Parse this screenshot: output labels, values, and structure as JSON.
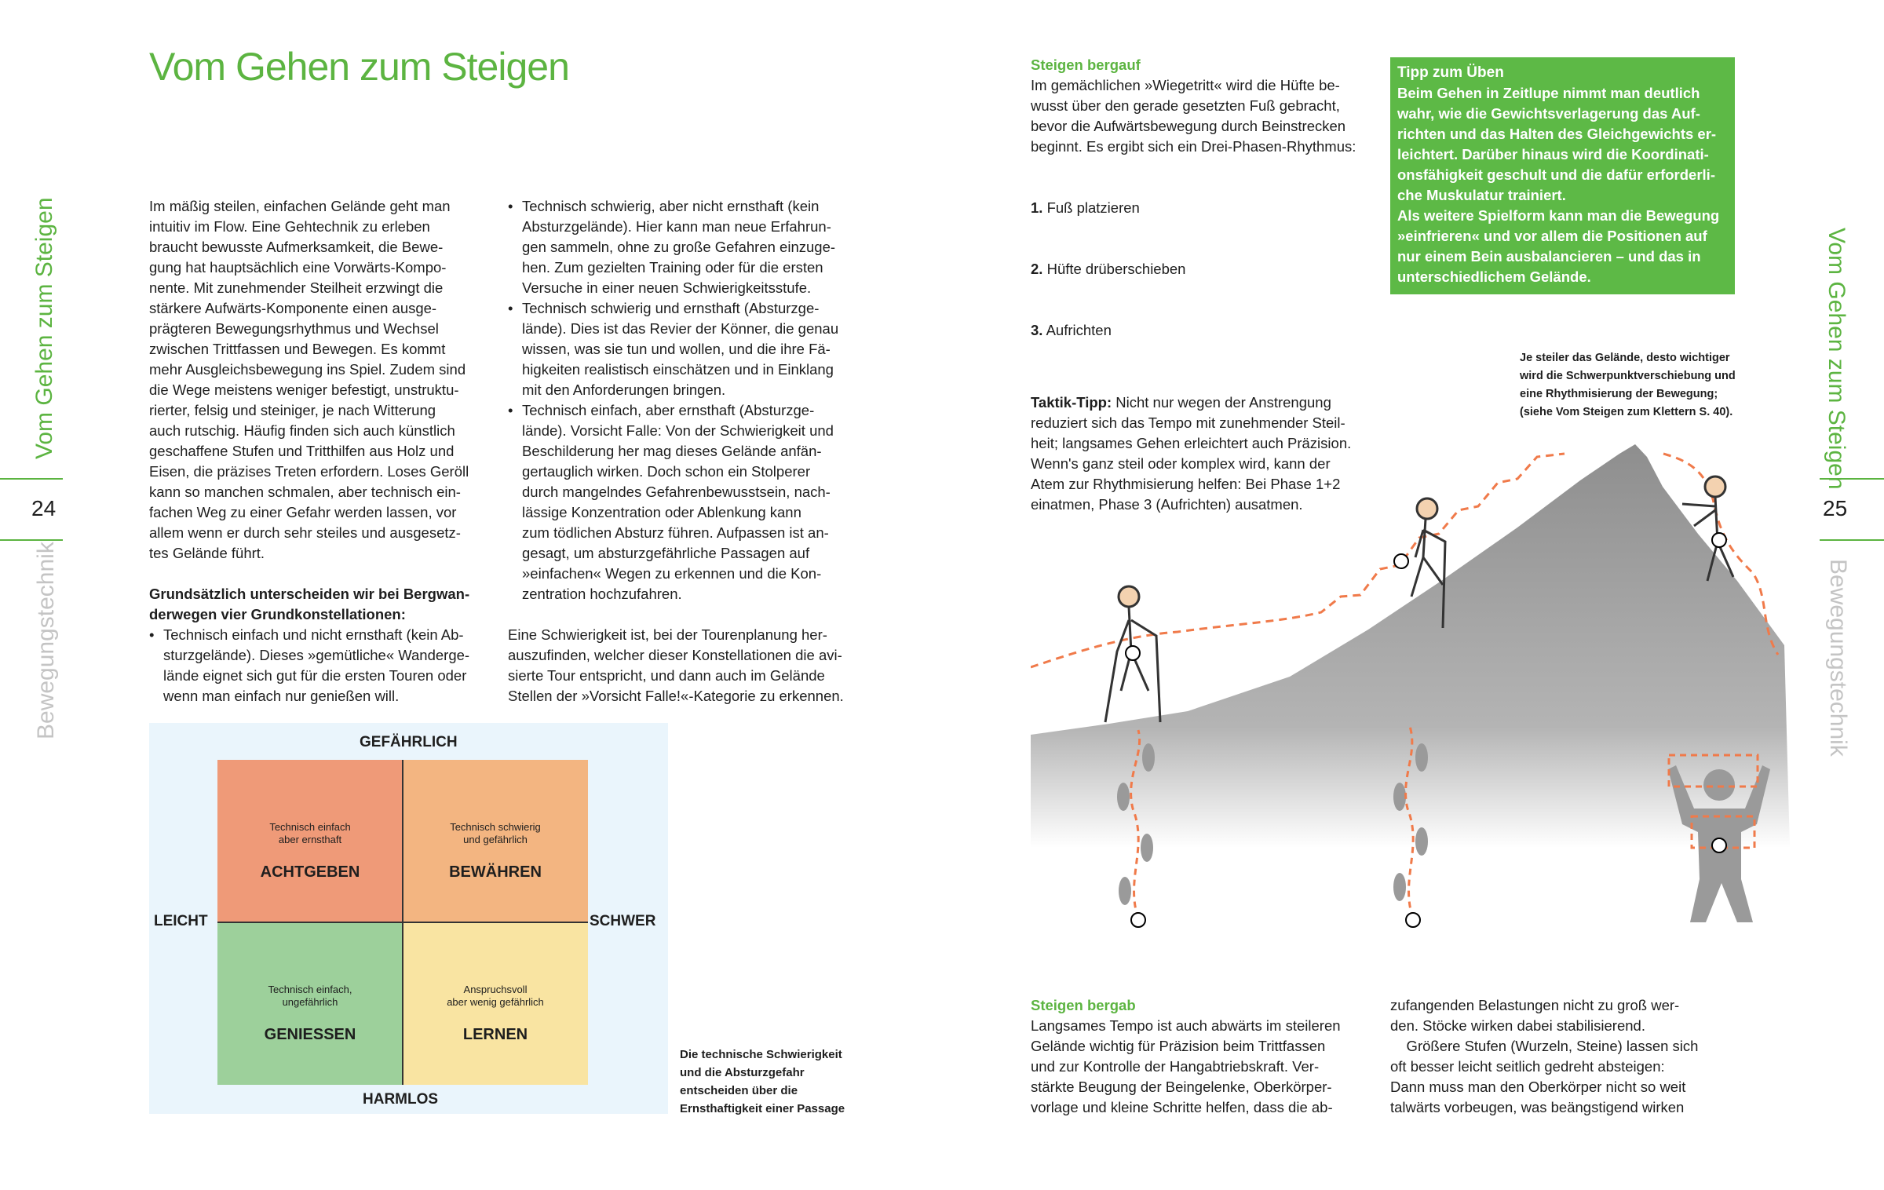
{
  "left_page": {
    "title": "Vom Gehen zum Steigen",
    "side_title": "Vom Gehen zum Steigen",
    "page_number": "24",
    "side_section": "Bewegungstechnik",
    "col1_para": "Im mäßig steilen, einfachen Gelände geht man\nintuitiv im Flow. Eine Gehtechnik zu erleben\nbraucht bewusste Aufmerksamkeit, die Bewe-\ngung hat hauptsächlich eine Vorwärts-Kompo-\nnente. Mit zunehmender Steilheit erzwingt die\nstärkere Aufwärts-Komponente einen ausge-\nprägteren Bewegungsrhythmus und Wechsel\nzwischen Trittfassen und Bewegen. Es kommt\nmehr Ausgleichsbewegung ins Spiel. Zudem sind\ndie Wege meistens weniger befestigt, unstruktu-\nrierter, felsig und steiniger, je nach Witterung\nauch rutschig. Häufig finden sich auch künstlich\ngeschaffene Stufen und Tritthilfen aus Holz und\nEisen, die präzises Treten erfordern. Loses Geröll\nkann so manchen schmalen, aber technisch ein-\nfachen Weg zu einer Gefahr werden lassen, vor\nallem wenn er durch sehr steiles und ausgesetz-\ntes Gelände führt.",
    "col1_bold": "Grundsätzlich unterscheiden wir bei Bergwan-\nderwegen vier Grundkonstellationen:",
    "bullets": [
      "Technisch einfach und nicht ernsthaft (kein Ab-\nsturzgelände). Dieses »gemütliche« Wanderge-\nlände eignet sich gut für die ersten Touren oder\nwenn man einfach nur genießen will.",
      "Technisch schwierig, aber nicht ernsthaft (kein\nAbsturzgelände). Hier kann man neue Erfahrun-\ngen sammeln, ohne zu große Gefahren einzuge-\nhen. Zum gezielten Training oder für die ersten\nVersuche in einer neuen Schwierigkeitsstufe.",
      "Technisch schwierig und ernsthaft (Absturzge-\nlände). Dies ist das Revier der Könner, die genau\nwissen, was sie tun und wollen, und die ihre Fä-\nhigkeiten realistisch einschätzen und in Einklang\nmit den Anforderungen bringen.",
      "Technisch einfach, aber ernsthaft (Absturzge-\nlände). Vorsicht Falle: Von der Schwierigkeit und\nBeschilderung her mag dieses Gelände anfän-\ngertauglich wirken. Doch schon ein Stolperer\ndurch mangelndes Gefahrenbewusstsein, nach-\nlässige Konzentration oder Ablenkung kann\nzum tödlichen Absturz führen. Aufpassen ist an-\ngesagt, um absturzgefährliche Passagen auf\n»einfachen« Wegen zu erkennen und die Kon-\nzentration hochzufahren."
    ],
    "col2_para": "Eine Schwierigkeit ist, bei der Tourenplanung her-\nauszufinden, welcher dieser Konstellationen die avi-\nsierte Tour entspricht, und dann auch im Gelände\nStellen der »Vorsicht Falle!«-Kategorie zu erkennen.",
    "matrix": {
      "top": "GEFÄHRLICH",
      "bottom": "HARMLOS",
      "left": "LEICHT",
      "right": "SCHWER",
      "cells": [
        {
          "sub": "Technisch einfach\naber ernsthaft",
          "label": "ACHTGEBEN",
          "color": "#ef9a78"
        },
        {
          "sub": "Technisch schwierig\nund gefährlich",
          "label": "BEWÄHREN",
          "color": "#f3b581"
        },
        {
          "sub": "Technisch einfach,\nungefährlich",
          "label": "GENIESSEN",
          "color": "#9dd09b"
        },
        {
          "sub": "Anspruchsvoll\naber wenig gefährlich",
          "label": "LERNEN",
          "color": "#f9e4a2"
        }
      ]
    },
    "matrix_caption": "Die technische Schwierigkeit\nund die Absturzgefahr\nentscheiden über die\nErnsthaftigkeit einer Passage"
  },
  "right_page": {
    "side_title": "Vom Gehen zum Steigen",
    "page_number": "25",
    "side_section": "Bewegungstechnik",
    "uphill_heading": "Steigen bergauf",
    "uphill_para": "Im gemächlichen »Wiegetritt« wird die Hüfte be-\nwusst über den gerade gesetzten Fuß gebracht,\nbevor die Aufwärtsbewegung durch Beinstrecken\nbeginnt. Es ergibt sich ein Drei-Phasen-Rhythmus:",
    "steps": [
      {
        "n": "1.",
        "t": "Fuß platzieren"
      },
      {
        "n": "2.",
        "t": "Hüfte drüberschieben"
      },
      {
        "n": "3.",
        "t": "Aufrichten"
      }
    ],
    "tactic_label": "Taktik-Tipp:",
    "tactic_text": " Nicht nur wegen der Anstrengung\nreduziert sich das Tempo mit zunehmender Steil-\nheit; langsames Gehen erleichtert auch Präzision.\nWenn's ganz steil oder komplex wird, kann der\nAtem zur Rhythmisierung helfen: Bei Phase 1+2\neinatmen, Phase 3 (Aufrichten) ausatmen.",
    "tip": {
      "heading": "Tipp zum Üben",
      "body": "Beim Gehen in Zeitlupe nimmt man deutlich\nwahr, wie die Gewichtsverlagerung das Auf-\nrichten und das Halten des Gleichgewichts er-\nleichtert. Darüber hinaus wird die Koordinati-\nonsfähigkeit geschult und die dafür erforderli-\nche Muskulatur trainiert.\nAls weitere Spielform kann man die Bewegung\n»einfrieren« und vor allem die Positionen auf\nnur einem Bein ausbalancieren – und das in\nunterschiedlichem Gelände.",
      "color": "#5db946"
    },
    "illustration_caption": "Je steiler das Gelände, desto wichtiger\nwird die Schwerpunktverschiebung und\neine Rhythmisierung der Bewegung;\n(siehe Vom Steigen zum Klettern S. 40).",
    "downhill_heading": "Steigen bergab",
    "downhill_col1": "Langsames Tempo ist auch abwärts im steileren\nGelände wichtig für Präzision beim Trittfassen\nund zur Kontrolle der Hangabtriebskraft. Ver-\nstärkte Beugung der Beingelenke, Oberkörper-\nvorlage und kleine Schritte helfen, dass die ab-",
    "downhill_col2": "zufangenden Belastungen nicht zu groß wer-\nden. Stöcke wirken dabei stabilisierend.\n    Größere Stufen (Wurzeln, Steine) lassen sich\noft besser leicht seitlich gedreht absteigen:\nDann muss man den Oberkörper nicht so weit\ntalwärts vorbeugen, was beängstigend wirken"
  },
  "colors": {
    "accent_green": "#5cb441",
    "path_orange": "#f07a4a",
    "mountain_gray": "#9a9a9a"
  }
}
